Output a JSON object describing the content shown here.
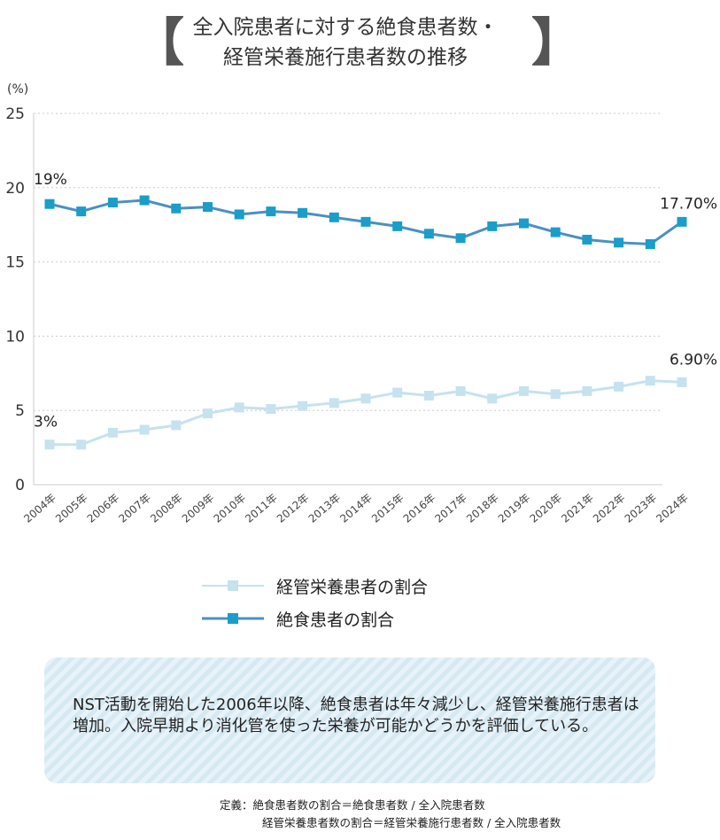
{
  "title": {
    "line1": "全入院患者に対する絶食患者数・",
    "line2": "経管栄養施行患者数の推移",
    "bracket_left": "【",
    "bracket_right": "】"
  },
  "chart_data": {
    "type": "line",
    "title": "全入院患者に対する絶食患者数・経管栄養施行患者数の推移",
    "ylabel": "(%)",
    "ylim": [
      0,
      25
    ],
    "yticks": [
      0,
      5,
      10,
      15,
      20,
      25
    ],
    "categories": [
      "2004年",
      "2005年",
      "2006年",
      "2007年",
      "2008年",
      "2009年",
      "2010年",
      "2011年",
      "2012年",
      "2013年",
      "2014年",
      "2015年",
      "2016年",
      "2017年",
      "2018年",
      "2019年",
      "2020年",
      "2021年",
      "2022年",
      "2023年",
      "2024年"
    ],
    "series": [
      {
        "name": "経管栄養患者の割合",
        "color": "#c5e2ef",
        "values": [
          2.7,
          2.7,
          3.5,
          3.7,
          4.0,
          4.8,
          5.2,
          5.1,
          5.3,
          5.5,
          5.8,
          6.2,
          6.0,
          6.3,
          5.8,
          6.3,
          6.1,
          6.3,
          6.6,
          7.0,
          6.9
        ],
        "start_label": "3%",
        "end_label": "6.90%"
      },
      {
        "name": "絶食患者の割合",
        "color": "#1a9dc8",
        "line_color": "#4a90c4",
        "values": [
          18.9,
          18.4,
          19.0,
          19.15,
          18.6,
          18.7,
          18.2,
          18.4,
          18.3,
          18.0,
          17.7,
          17.4,
          16.9,
          16.6,
          17.4,
          17.6,
          17.0,
          16.5,
          16.3,
          16.2,
          17.7
        ],
        "start_label": "19%",
        "end_label": "17.70%"
      }
    ],
    "grid": true,
    "legend": "bottom"
  },
  "note": "NST活動を開始した2006年以降、絶食患者は年々減少し、経管栄養施行患者は増加。入院早期より消化管を使った栄養が可能かどうかを評価している。",
  "definitions": {
    "line1": "定義：絶食患者数の割合＝絶食患者数 / 全入院患者数",
    "line2": "経管栄養患者数の割合＝経管栄養施行患者数 / 全入院患者数"
  }
}
